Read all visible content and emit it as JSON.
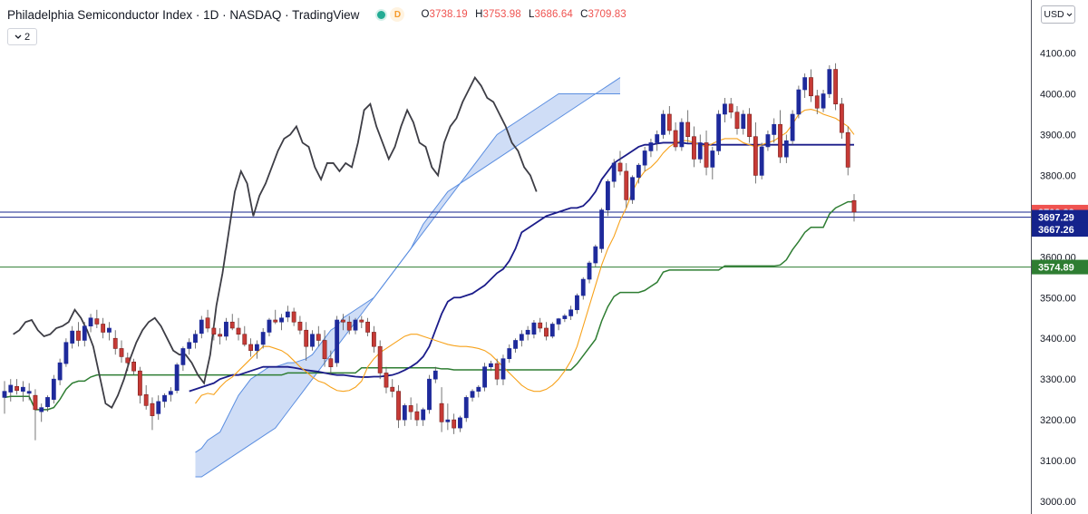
{
  "header": {
    "title": "Philadelphia Semiconductor Index · 1D · NASDAQ · TradingView",
    "status_letter": "D",
    "ohlc": {
      "open": "3738.19",
      "high": "3753.98",
      "low": "3686.64",
      "close": "3709.83",
      "open_prefix": "O",
      "high_prefix": "H",
      "low_prefix": "L",
      "close_prefix": "C"
    },
    "collapse_label": "2",
    "currency": "USD"
  },
  "icons": {
    "collapse": "chevron-down-icon",
    "currency_menu": "chevron-down-icon",
    "status": "green-dot-icon"
  },
  "colors": {
    "up_candle": "#1e2a9b",
    "down_candle": "#c63a36",
    "conversion": "#f7a21b",
    "base": "#1b1c8a",
    "lagging": "#3d3d45",
    "cloud_fill": "#c7d7f4",
    "cloud_edge": "#5b8ee0",
    "support": "#2e7d32",
    "close_badge": "#ef5350",
    "line_badge": "#15238c",
    "green_badge": "#2e7d32"
  },
  "chart_data": {
    "type": "candlestick",
    "symbol": "Philadelphia Semiconductor Index",
    "interval": "1D",
    "y_axis": {
      "ticks": [
        3000,
        3100,
        3200,
        3300,
        3400,
        3500,
        3600,
        3700,
        3800,
        3900,
        4000,
        4100
      ],
      "tick_labels": [
        "3000.00",
        "3100.00",
        "3200.00",
        "3300.00",
        "3400.00",
        "3500.00",
        "3600.00",
        "3700.00",
        "3800.00",
        "3900.00",
        "4000.00",
        "4100.00"
      ],
      "ylim": [
        2970,
        4190
      ],
      "position": "right"
    },
    "hlines": [
      {
        "value": 3709.83,
        "label": "3709.83",
        "badge": "close"
      },
      {
        "value": 3697.29,
        "label": "3697.29",
        "badge": "line"
      },
      {
        "value": 3667.26,
        "label": "3667.26",
        "badge": "line",
        "line": false
      },
      {
        "value": 3574.89,
        "label": "3574.89",
        "badge": "green"
      }
    ],
    "candles": [
      [
        3255,
        3295,
        3215,
        3270
      ],
      [
        3268,
        3300,
        3245,
        3285
      ],
      [
        3282,
        3300,
        3262,
        3272
      ],
      [
        3270,
        3295,
        3245,
        3280
      ],
      [
        3265,
        3290,
        3248,
        3270
      ],
      [
        3260,
        3275,
        3150,
        3225
      ],
      [
        3220,
        3240,
        3195,
        3230
      ],
      [
        3232,
        3260,
        3220,
        3255
      ],
      [
        3250,
        3310,
        3240,
        3300
      ],
      [
        3298,
        3350,
        3285,
        3340
      ],
      [
        3338,
        3400,
        3330,
        3390
      ],
      [
        3388,
        3430,
        3375,
        3418
      ],
      [
        3418,
        3440,
        3380,
        3395
      ],
      [
        3395,
        3440,
        3380,
        3430
      ],
      [
        3430,
        3460,
        3415,
        3450
      ],
      [
        3448,
        3470,
        3425,
        3435
      ],
      [
        3435,
        3450,
        3400,
        3415
      ],
      [
        3415,
        3440,
        3395,
        3425
      ],
      [
        3400,
        3420,
        3360,
        3375
      ],
      [
        3375,
        3395,
        3340,
        3355
      ],
      [
        3352,
        3365,
        3320,
        3340
      ],
      [
        3342,
        3350,
        3310,
        3320
      ],
      [
        3320,
        3330,
        3240,
        3260
      ],
      [
        3262,
        3285,
        3225,
        3235
      ],
      [
        3240,
        3255,
        3175,
        3210
      ],
      [
        3215,
        3260,
        3200,
        3245
      ],
      [
        3245,
        3265,
        3230,
        3260
      ],
      [
        3262,
        3280,
        3245,
        3270
      ],
      [
        3272,
        3340,
        3265,
        3335
      ],
      [
        3335,
        3380,
        3320,
        3375
      ],
      [
        3375,
        3400,
        3360,
        3390
      ],
      [
        3390,
        3420,
        3375,
        3410
      ],
      [
        3412,
        3455,
        3400,
        3445
      ],
      [
        3450,
        3470,
        3415,
        3425
      ],
      [
        3425,
        3440,
        3395,
        3410
      ],
      [
        3410,
        3425,
        3385,
        3405
      ],
      [
        3405,
        3450,
        3395,
        3440
      ],
      [
        3440,
        3460,
        3420,
        3425
      ],
      [
        3425,
        3450,
        3395,
        3410
      ],
      [
        3410,
        3430,
        3380,
        3385
      ],
      [
        3385,
        3400,
        3355,
        3370
      ],
      [
        3370,
        3395,
        3350,
        3385
      ],
      [
        3385,
        3425,
        3375,
        3415
      ],
      [
        3415,
        3450,
        3405,
        3445
      ],
      [
        3445,
        3470,
        3435,
        3440
      ],
      [
        3440,
        3460,
        3420,
        3450
      ],
      [
        3452,
        3480,
        3440,
        3465
      ],
      [
        3465,
        3475,
        3430,
        3440
      ],
      [
        3440,
        3455,
        3410,
        3420
      ],
      [
        3420,
        3440,
        3345,
        3380
      ],
      [
        3380,
        3420,
        3370,
        3410
      ],
      [
        3410,
        3430,
        3380,
        3395
      ],
      [
        3395,
        3420,
        3330,
        3350
      ],
      [
        3350,
        3370,
        3310,
        3330
      ],
      [
        3340,
        3455,
        3330,
        3445
      ],
      [
        3445,
        3460,
        3420,
        3440
      ],
      [
        3440,
        3455,
        3410,
        3420
      ],
      [
        3420,
        3450,
        3410,
        3445
      ],
      [
        3445,
        3455,
        3425,
        3440
      ],
      [
        3440,
        3450,
        3405,
        3415
      ],
      [
        3415,
        3430,
        3365,
        3380
      ],
      [
        3380,
        3395,
        3300,
        3315
      ],
      [
        3315,
        3330,
        3265,
        3280
      ],
      [
        3280,
        3300,
        3255,
        3270
      ],
      [
        3270,
        3285,
        3180,
        3200
      ],
      [
        3200,
        3240,
        3185,
        3235
      ],
      [
        3235,
        3255,
        3200,
        3220
      ],
      [
        3220,
        3240,
        3185,
        3200
      ],
      [
        3200,
        3230,
        3185,
        3225
      ],
      [
        3225,
        3310,
        3215,
        3300
      ],
      [
        3300,
        3330,
        3290,
        3320
      ],
      [
        3240,
        3280,
        3170,
        3195
      ],
      [
        3195,
        3240,
        3175,
        3200
      ],
      [
        3200,
        3215,
        3165,
        3180
      ],
      [
        3180,
        3210,
        3170,
        3205
      ],
      [
        3205,
        3260,
        3195,
        3255
      ],
      [
        3255,
        3275,
        3245,
        3270
      ],
      [
        3270,
        3285,
        3255,
        3280
      ],
      [
        3280,
        3340,
        3270,
        3330
      ],
      [
        3330,
        3345,
        3320,
        3338
      ],
      [
        3338,
        3350,
        3285,
        3300
      ],
      [
        3300,
        3360,
        3285,
        3350
      ],
      [
        3350,
        3385,
        3340,
        3375
      ],
      [
        3375,
        3400,
        3365,
        3395
      ],
      [
        3395,
        3420,
        3380,
        3410
      ],
      [
        3410,
        3430,
        3395,
        3420
      ],
      [
        3410,
        3445,
        3400,
        3438
      ],
      [
        3438,
        3450,
        3415,
        3425
      ],
      [
        3425,
        3440,
        3395,
        3405
      ],
      [
        3405,
        3440,
        3400,
        3435
      ],
      [
        3435,
        3450,
        3420,
        3448
      ],
      [
        3448,
        3460,
        3440,
        3455
      ],
      [
        3455,
        3480,
        3445,
        3470
      ],
      [
        3470,
        3510,
        3460,
        3505
      ],
      [
        3505,
        3550,
        3495,
        3545
      ],
      [
        3545,
        3590,
        3535,
        3585
      ],
      [
        3585,
        3630,
        3575,
        3625
      ],
      [
        3620,
        3720,
        3610,
        3715
      ],
      [
        3715,
        3790,
        3700,
        3785
      ],
      [
        3785,
        3840,
        3770,
        3830
      ],
      [
        3830,
        3860,
        3800,
        3810
      ],
      [
        3810,
        3830,
        3720,
        3740
      ],
      [
        3740,
        3800,
        3730,
        3795
      ],
      [
        3795,
        3830,
        3780,
        3825
      ],
      [
        3825,
        3870,
        3810,
        3860
      ],
      [
        3860,
        3890,
        3845,
        3880
      ],
      [
        3880,
        3910,
        3860,
        3900
      ],
      [
        3900,
        3960,
        3890,
        3950
      ],
      [
        3950,
        3970,
        3900,
        3910
      ],
      [
        3910,
        3930,
        3860,
        3870
      ],
      [
        3870,
        3940,
        3860,
        3930
      ],
      [
        3930,
        3960,
        3880,
        3895
      ],
      [
        3895,
        3920,
        3820,
        3840
      ],
      [
        3840,
        3900,
        3830,
        3880
      ],
      [
        3880,
        3910,
        3800,
        3820
      ],
      [
        3820,
        3870,
        3790,
        3860
      ],
      [
        3860,
        3960,
        3850,
        3950
      ],
      [
        3950,
        3990,
        3930,
        3975
      ],
      [
        3975,
        3990,
        3940,
        3955
      ],
      [
        3955,
        3970,
        3900,
        3915
      ],
      [
        3915,
        3960,
        3900,
        3950
      ],
      [
        3950,
        3965,
        3880,
        3895
      ],
      [
        3895,
        3930,
        3780,
        3800
      ],
      [
        3800,
        3880,
        3790,
        3870
      ],
      [
        3870,
        3910,
        3860,
        3900
      ],
      [
        3900,
        3940,
        3880,
        3925
      ],
      [
        3925,
        3960,
        3830,
        3845
      ],
      [
        3845,
        3900,
        3830,
        3885
      ],
      [
        3885,
        3960,
        3875,
        3950
      ],
      [
        3950,
        4020,
        3940,
        4010
      ],
      [
        4010,
        4050,
        3990,
        4040
      ],
      [
        4040,
        4060,
        3980,
        3995
      ],
      [
        3995,
        4010,
        3950,
        3965
      ],
      [
        3965,
        4010,
        3955,
        4000
      ],
      [
        4000,
        4070,
        3990,
        4060
      ],
      [
        4060,
        4075,
        3960,
        3975
      ],
      [
        3975,
        3990,
        3890,
        3905
      ],
      [
        3905,
        3920,
        3800,
        3820
      ],
      [
        3738.19,
        3753.98,
        3686.64,
        3709.83
      ]
    ],
    "conversion_line": [
      3240,
      3260,
      3265,
      3262,
      3280,
      3295,
      3305,
      3320,
      3335,
      3350,
      3365,
      3380,
      3380,
      3375,
      3370,
      3360,
      3345,
      3330,
      3318,
      3305,
      3295,
      3290,
      3280,
      3272,
      3270,
      3272,
      3280,
      3295,
      3330,
      3350,
      3365,
      3375,
      3385,
      3395,
      3405,
      3410,
      3410,
      3405,
      3400,
      3395,
      3390,
      3385,
      3382,
      3380,
      3380,
      3378,
      3375,
      3370,
      3360,
      3345,
      3330,
      3315,
      3300,
      3285,
      3275,
      3270,
      3270,
      3275,
      3285,
      3300,
      3320,
      3345,
      3380,
      3430,
      3480,
      3530,
      3580,
      3620,
      3650,
      3690,
      3720,
      3760,
      3790,
      3810,
      3820,
      3835,
      3855,
      3870,
      3880,
      3885,
      3885,
      3880,
      3875,
      3870,
      3878,
      3885,
      3890,
      3890,
      3890,
      3880,
      3875,
      3870,
      3875,
      3880,
      3885,
      3895,
      3905,
      3925,
      3950,
      3960,
      3962,
      3958,
      3950,
      3945,
      3940,
      3930,
      3920,
      3900
    ],
    "base_line": [
      3270,
      3275,
      3280,
      3285,
      3290,
      3300,
      3305,
      3310,
      3310,
      3315,
      3320,
      3325,
      3330,
      3330,
      3330,
      3330,
      3330,
      3328,
      3325,
      3322,
      3320,
      3318,
      3315,
      3312,
      3310,
      3310,
      3308,
      3306,
      3305,
      3305,
      3306,
      3306,
      3308,
      3310,
      3315,
      3322,
      3330,
      3340,
      3355,
      3380,
      3420,
      3460,
      3490,
      3500,
      3500,
      3505,
      3510,
      3520,
      3530,
      3545,
      3560,
      3570,
      3590,
      3620,
      3660,
      3670,
      3680,
      3690,
      3700,
      3705,
      3710,
      3715,
      3720,
      3720,
      3725,
      3740,
      3760,
      3790,
      3810,
      3830,
      3840,
      3850,
      3860,
      3870,
      3875,
      3875,
      3878,
      3880,
      3880,
      3880,
      3880,
      3878,
      3878,
      3878,
      3875,
      3875,
      3875,
      3875,
      3875,
      3875,
      3875,
      3875,
      3875,
      3875,
      3875,
      3875,
      3875,
      3875,
      3875,
      3875,
      3875,
      3875,
      3875,
      3875,
      3875,
      3875,
      3875,
      3875,
      3875
    ],
    "lagging_span": [
      3410,
      3420,
      3440,
      3445,
      3420,
      3405,
      3410,
      3425,
      3430,
      3440,
      3470,
      3450,
      3420,
      3380,
      3310,
      3240,
      3230,
      3260,
      3300,
      3350,
      3390,
      3420,
      3440,
      3450,
      3430,
      3400,
      3370,
      3360,
      3360,
      3340,
      3310,
      3290,
      3360,
      3480,
      3560,
      3660,
      3760,
      3810,
      3780,
      3700,
      3750,
      3780,
      3820,
      3860,
      3890,
      3900,
      3920,
      3880,
      3870,
      3820,
      3790,
      3830,
      3830,
      3810,
      3830,
      3820,
      3880,
      3960,
      3975,
      3920,
      3880,
      3840,
      3870,
      3920,
      3960,
      3930,
      3880,
      3870,
      3820,
      3800,
      3880,
      3920,
      3940,
      3980,
      4010,
      4040,
      4020,
      3990,
      3980,
      3950,
      3920,
      3880,
      3860,
      3820,
      3800,
      3760
    ],
    "cloud_span_a": [
      3120,
      3130,
      3150,
      3160,
      3170,
      3200,
      3230,
      3260,
      3280,
      3300,
      3310,
      3320,
      3330,
      3330,
      3335,
      3340,
      3340,
      3345,
      3350,
      3360,
      3380,
      3400,
      3420,
      3430,
      3450,
      3460,
      3470,
      3480,
      3490,
      3500,
      3520,
      3540,
      3560,
      3580,
      3600,
      3620,
      3650,
      3680,
      3700,
      3720,
      3740,
      3760,
      3770,
      3780,
      3790,
      3800,
      3810,
      3820,
      3830,
      3840,
      3850,
      3860,
      3870,
      3880,
      3890,
      3900,
      3910,
      3920,
      3930,
      3940,
      3950,
      3960,
      3970,
      3980,
      3990,
      4000,
      4010,
      4020,
      4030,
      4040
    ],
    "cloud_span_b": [
      3060,
      3060,
      3070,
      3080,
      3090,
      3100,
      3110,
      3120,
      3130,
      3140,
      3150,
      3160,
      3170,
      3180,
      3200,
      3220,
      3240,
      3260,
      3280,
      3300,
      3320,
      3340,
      3360,
      3380,
      3400,
      3420,
      3440,
      3460,
      3480,
      3500,
      3520,
      3540,
      3560,
      3580,
      3600,
      3620,
      3640,
      3660,
      3680,
      3700,
      3720,
      3740,
      3760,
      3780,
      3800,
      3820,
      3840,
      3860,
      3880,
      3900,
      3910,
      3920,
      3930,
      3940,
      3950,
      3960,
      3970,
      3980,
      3990,
      4000,
      4000,
      4000,
      4000,
      4000,
      4000,
      4000,
      4000,
      4000,
      4000,
      4000
    ]
  }
}
